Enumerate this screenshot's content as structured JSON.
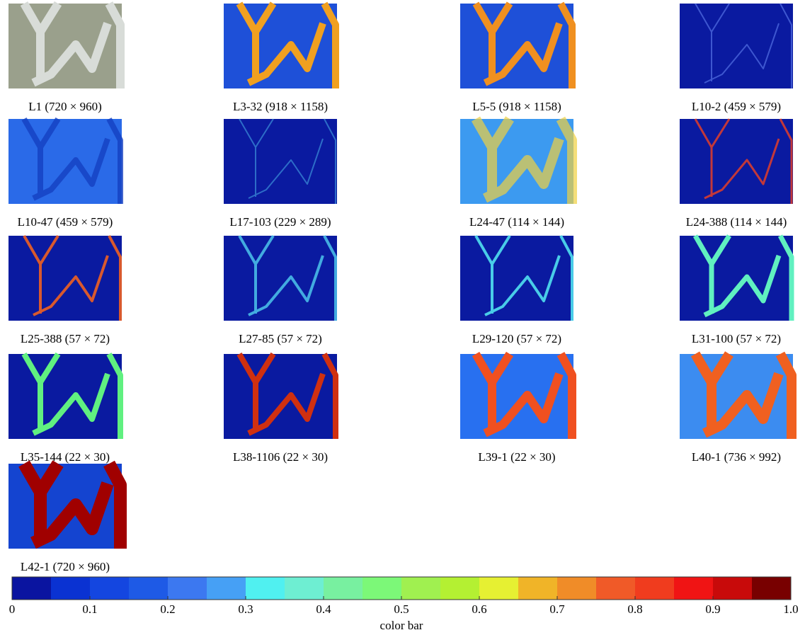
{
  "panels": [
    "L1 (720 × 960)",
    "L3-32 (918 × 1158)",
    "L5-5 (918 × 1158)",
    "L10-2 (459 × 579)",
    "L10-47 (459 × 579)",
    "L17-103 (229 × 289)",
    "L24-47 (114 × 144)",
    "L24-388 (114 × 144)",
    "L25-388 (57 × 72)",
    "L27-85 (57 × 72)",
    "L29-120 (57 × 72)",
    "L31-100 (57 × 72)",
    "L35-144 (22 × 30)",
    "L38-1106 (22 × 30)",
    "L39-1 (22 × 30)",
    "L40-1 (736 × 992)",
    "L42-1 (720 × 960)"
  ],
  "colorbar": {
    "label": "color bar",
    "xlim": [
      0,
      1
    ],
    "colors": [
      "#0a14a0",
      "#0a32d2",
      "#1446e0",
      "#1e5ae6",
      "#3c78f0",
      "#46a0f5",
      "#50f0f0",
      "#6eeed2",
      "#78f0a0",
      "#7cf878",
      "#a0f050",
      "#b4f032",
      "#e6f032",
      "#f0b428",
      "#f08c28",
      "#f05a28",
      "#f03c1e",
      "#f01414",
      "#c80a0a",
      "#780000"
    ],
    "ticks": [
      0,
      0.1,
      0.2,
      0.3,
      0.4,
      0.5,
      0.6,
      0.7,
      0.8,
      0.9,
      {
        "value": 1,
        "label": "1.0"
      }
    ]
  }
}
